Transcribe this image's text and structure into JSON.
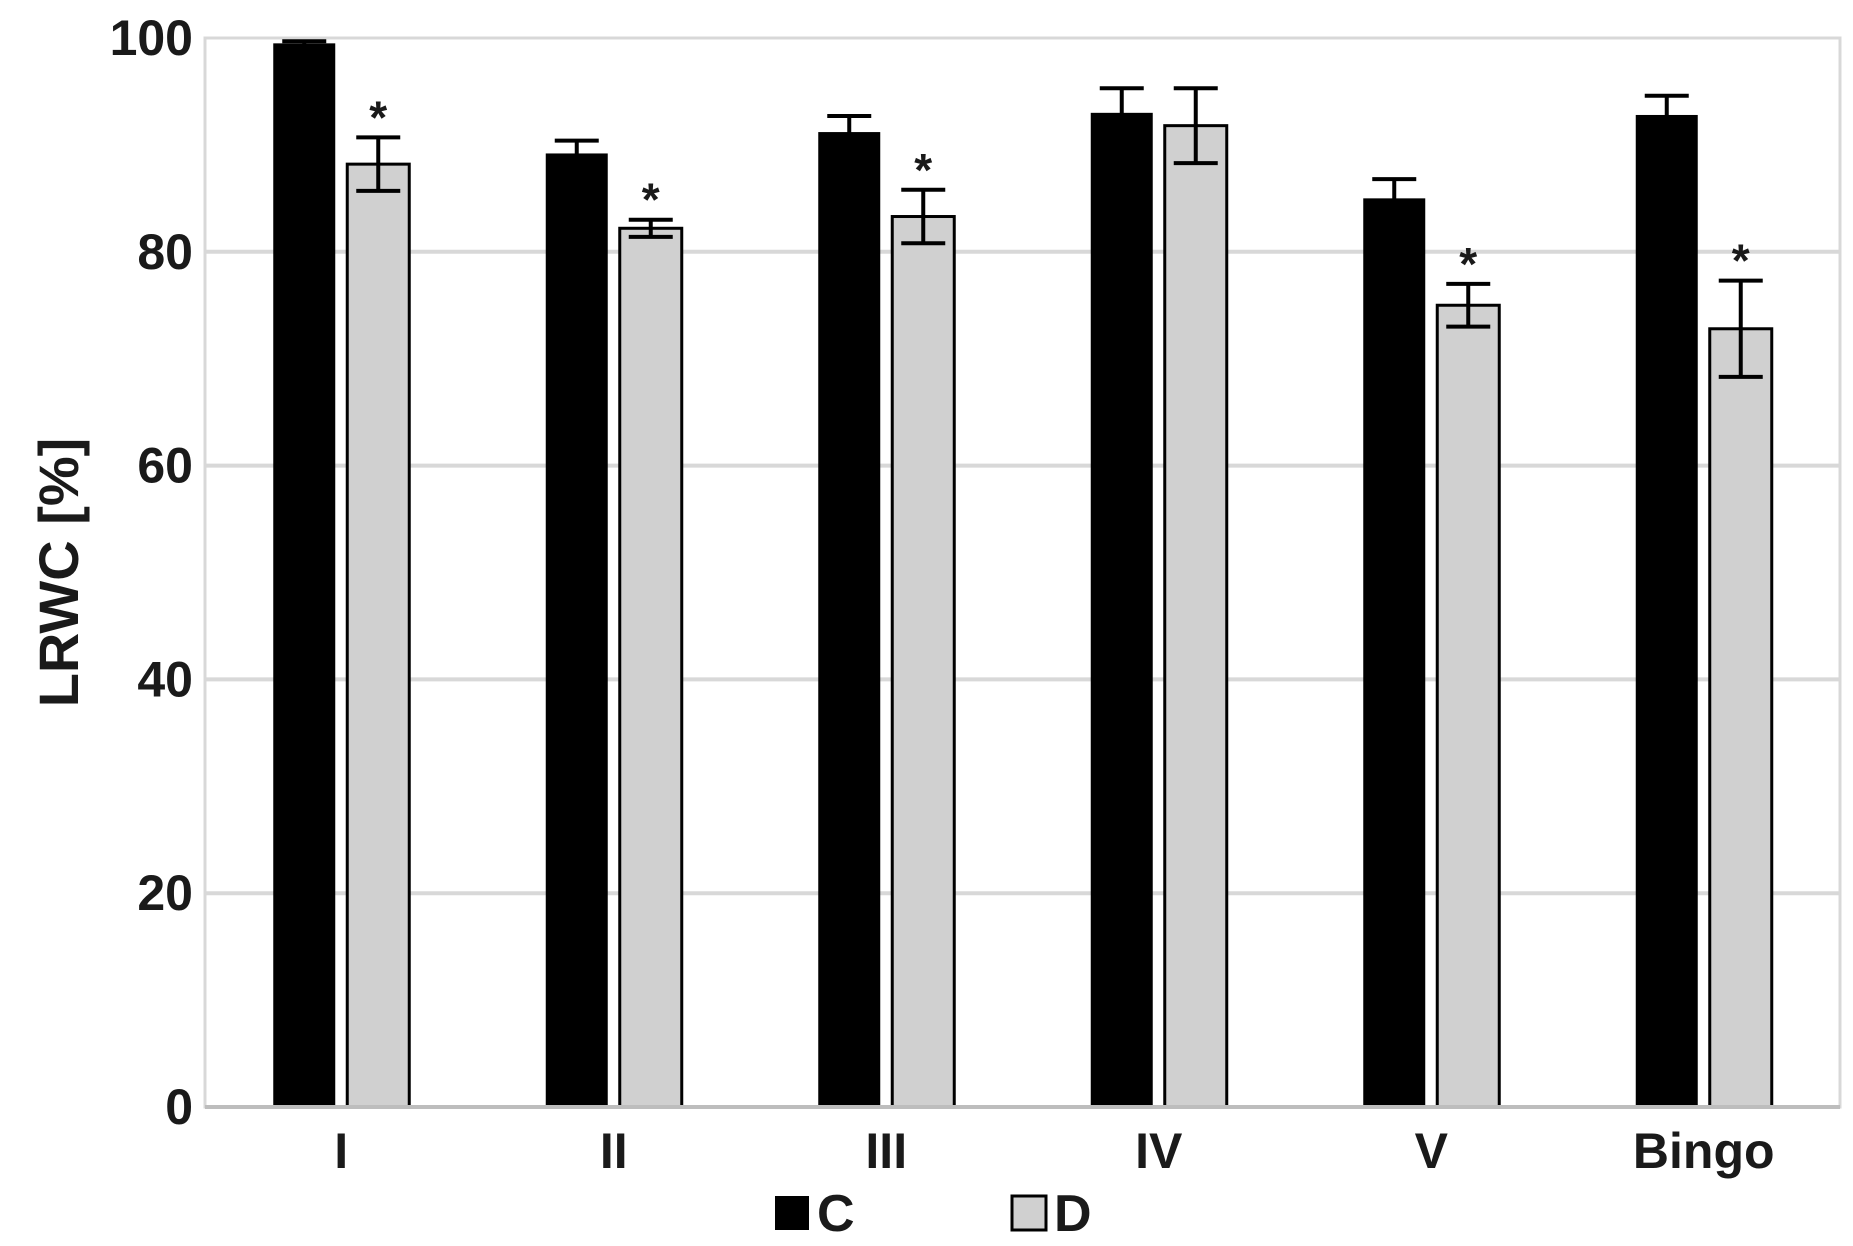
{
  "chart_data": {
    "type": "bar",
    "ylabel": "LRWC [%]",
    "ylim": [
      0,
      100
    ],
    "yticks": [
      0,
      20,
      40,
      60,
      80,
      100
    ],
    "grid": true,
    "legend_position": "bottom-center",
    "categories": [
      "I",
      "II",
      "III",
      "IV",
      "V",
      "Bingo"
    ],
    "series": [
      {
        "name": "C",
        "color": "#000000",
        "values": [
          99.5,
          89.2,
          91.2,
          93.0,
          85.0,
          92.8
        ],
        "errors": [
          0.2,
          1.2,
          1.5,
          2.3,
          1.8,
          1.8
        ],
        "sig": [
          "",
          "",
          "",
          "",
          "",
          ""
        ]
      },
      {
        "name": "D",
        "color": "#d0d0d0",
        "values": [
          88.2,
          82.2,
          83.3,
          91.8,
          75.0,
          72.8
        ],
        "errors": [
          2.5,
          0.8,
          2.5,
          3.5,
          2.0,
          4.5
        ],
        "sig": [
          "*",
          "*",
          "*",
          "",
          "*",
          "*"
        ]
      }
    ]
  }
}
